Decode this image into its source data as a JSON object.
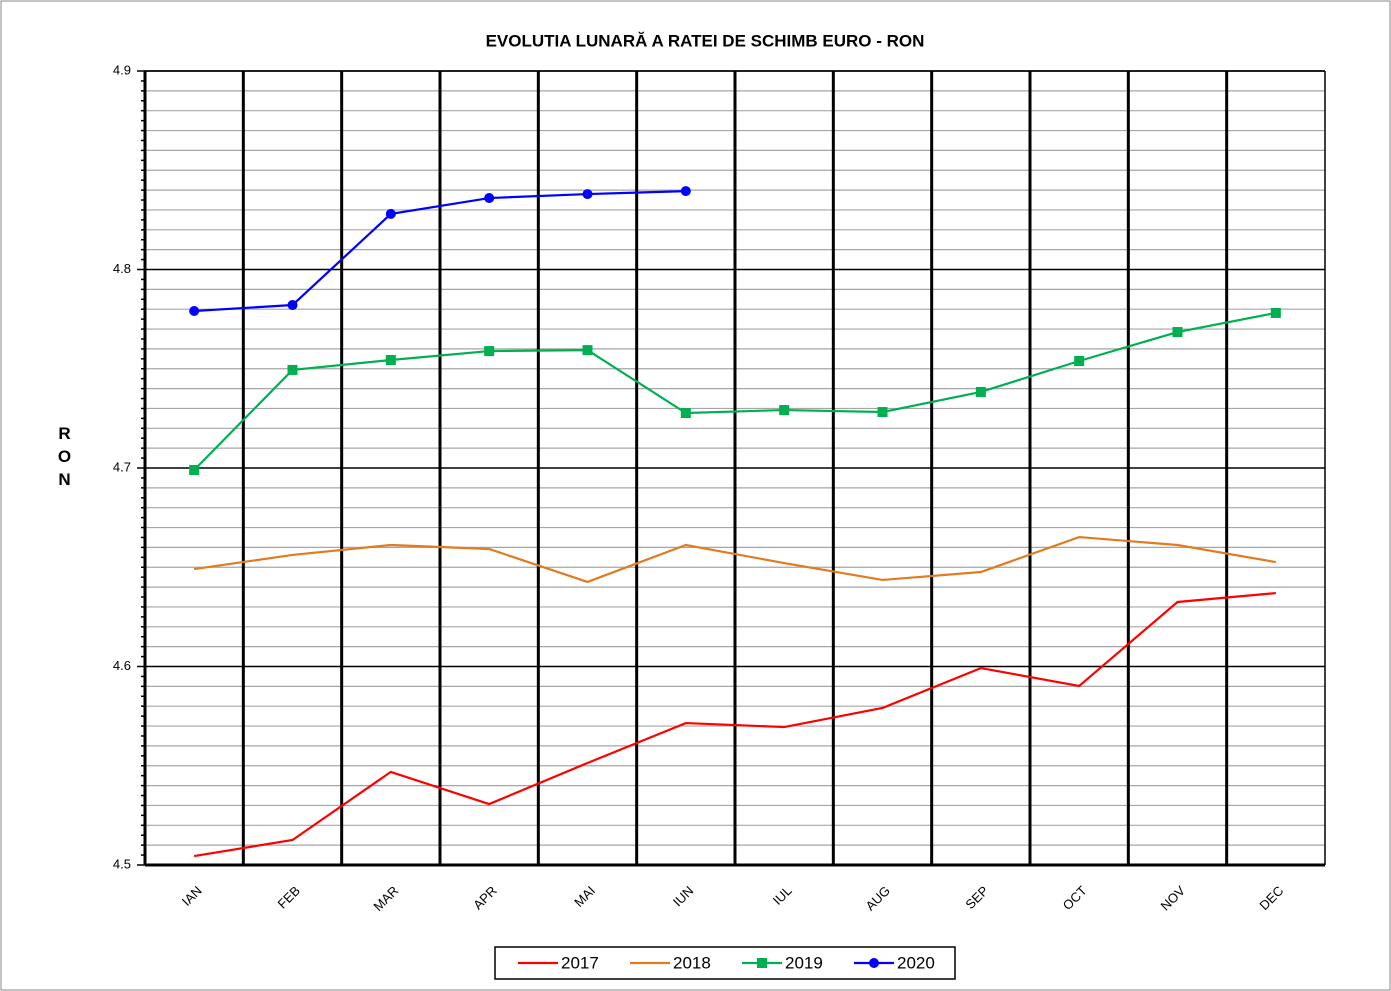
{
  "chart_data": {
    "type": "line",
    "title": "EVOLUTIA LUNARĂ A RATEI DE SCHIMB EURO - RON",
    "y_label": "RON",
    "categories": [
      "IAN",
      "FEB",
      "MAR",
      "APR",
      "MAI",
      "IUN",
      "IUL",
      "AUG",
      "SEP",
      "OCT",
      "NOV",
      "DEC"
    ],
    "series": [
      {
        "name": "2017",
        "color": "#ff0000",
        "marker": "none",
        "values": [
          4.5045,
          4.5126,
          4.5469,
          4.5307,
          4.5514,
          4.5715,
          4.5695,
          4.5791,
          4.5992,
          4.5902,
          4.6325,
          4.637
        ]
      },
      {
        "name": "2018",
        "color": "#e07b20",
        "marker": "none",
        "values": [
          4.6491,
          4.6562,
          4.6612,
          4.6592,
          4.6426,
          4.6612,
          4.6521,
          4.6436,
          4.6476,
          4.6652,
          4.6612,
          4.6526
        ]
      },
      {
        "name": "2019",
        "color": "#00b050",
        "marker": "square",
        "values": [
          4.699,
          4.7494,
          4.7544,
          4.7589,
          4.7594,
          4.7277,
          4.7292,
          4.7282,
          4.7383,
          4.7539,
          4.7685,
          4.7781
        ]
      },
      {
        "name": "2020",
        "color": "#0000ff",
        "marker": "circle",
        "values": [
          4.7791,
          4.7821,
          4.828,
          4.836,
          4.838,
          4.8395,
          null,
          null,
          null,
          null,
          null,
          null
        ]
      }
    ],
    "ylim": [
      4.5,
      4.9
    ],
    "yticks": [
      4.5,
      4.6,
      4.7,
      4.8,
      4.9
    ],
    "grid": true,
    "legend": "bottom"
  }
}
